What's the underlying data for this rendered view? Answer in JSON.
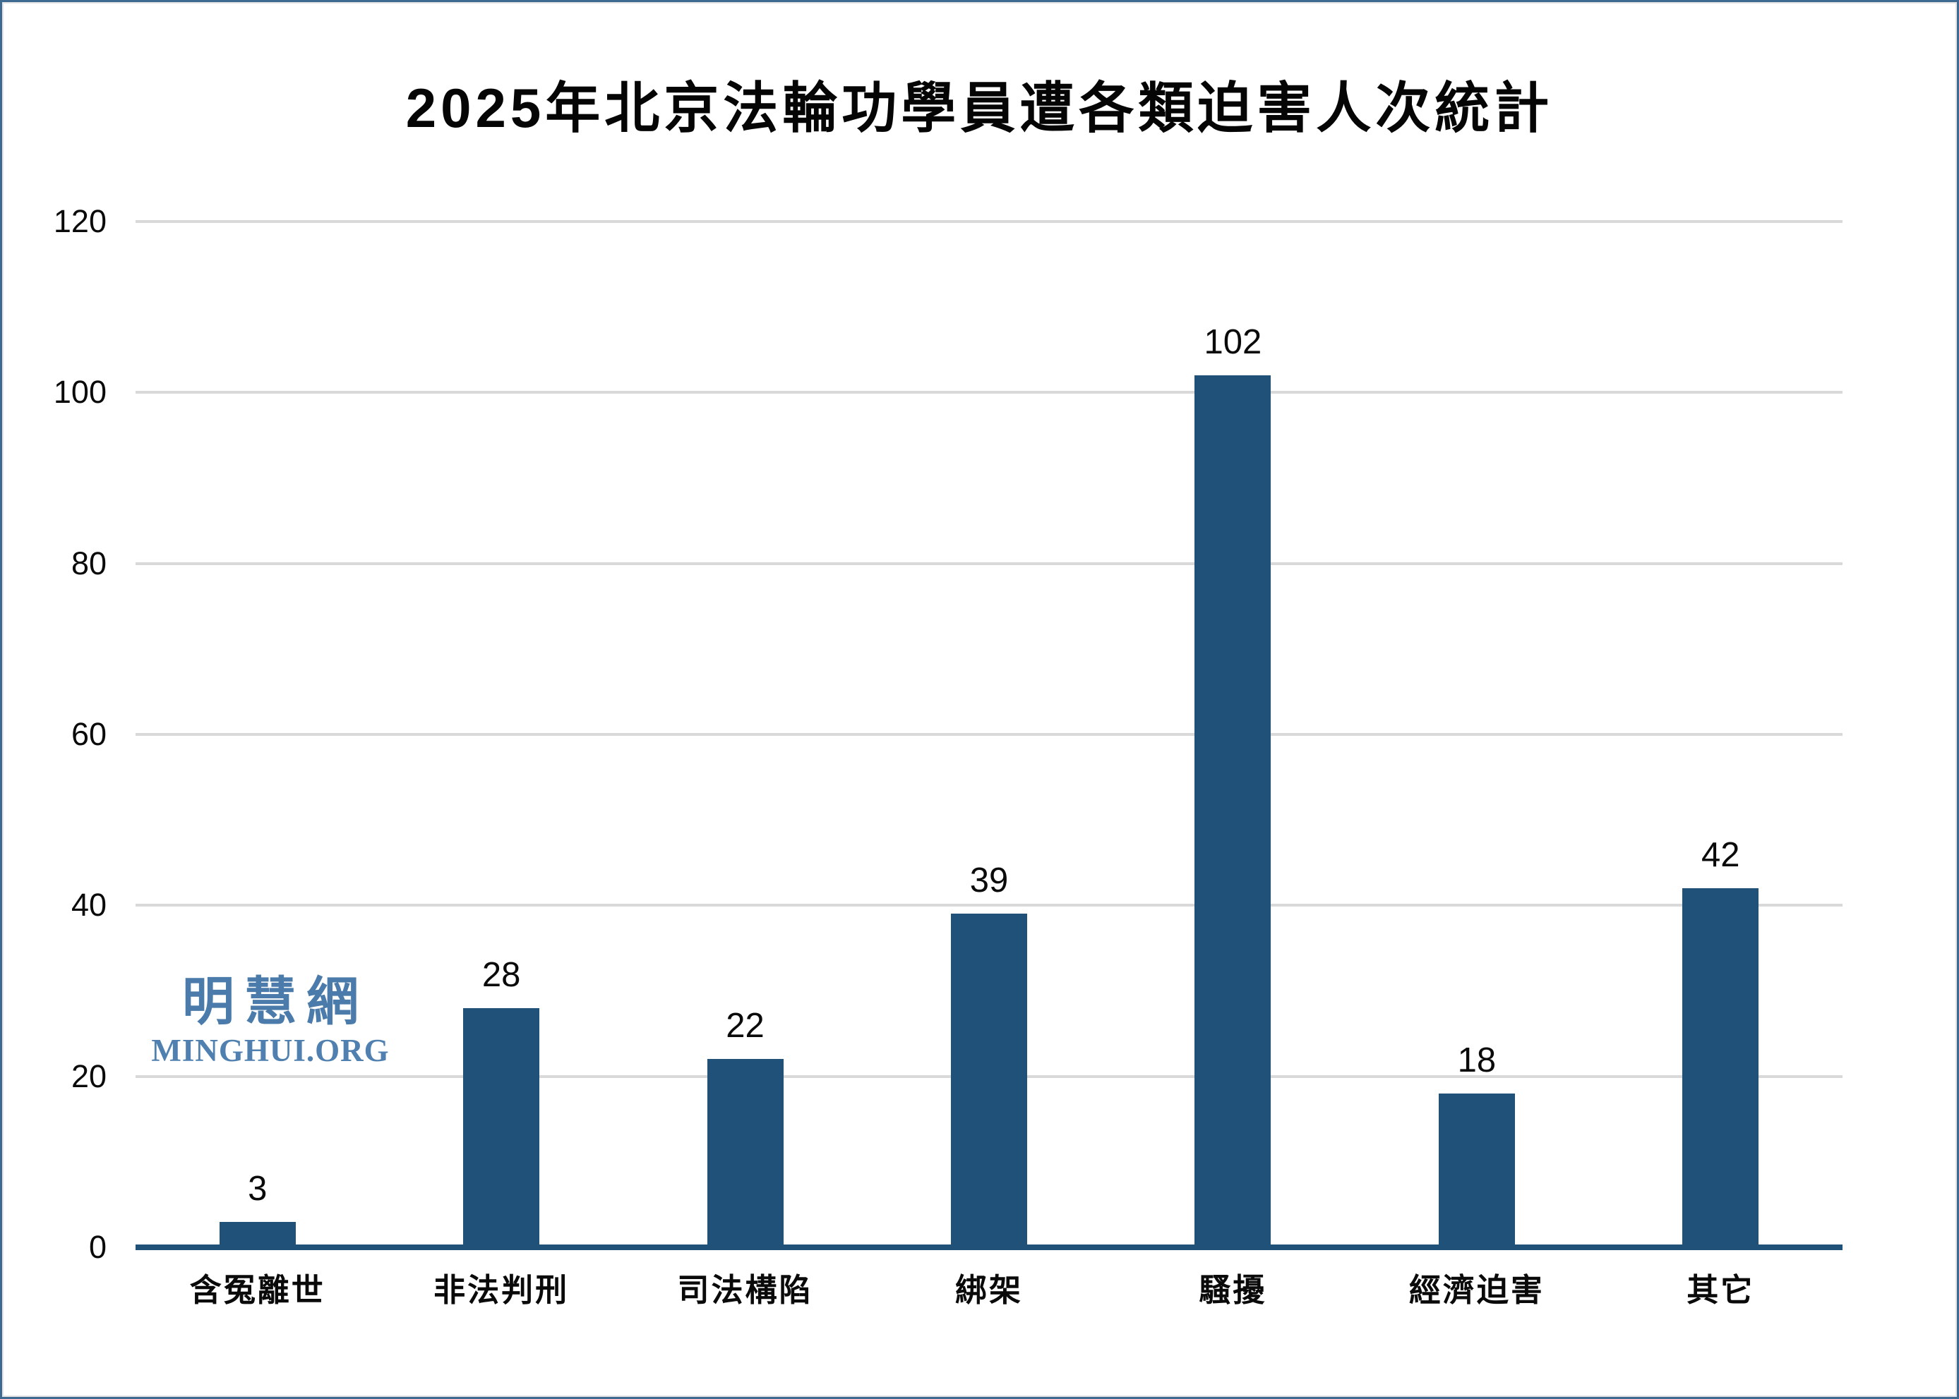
{
  "page": {
    "border_color": "#3E6991",
    "background_color": "#FFFFFF"
  },
  "chart_data": {
    "type": "bar",
    "title": "2025年北京法輪功學員遭各類迫害人次統計",
    "categories": [
      "含冤離世",
      "非法判刑",
      "司法構陷",
      "綁架",
      "騷擾",
      "經濟迫害",
      "其它"
    ],
    "values": [
      3,
      28,
      22,
      39,
      102,
      18,
      42
    ],
    "xlabel": "",
    "ylabel": "",
    "ylim": [
      0,
      120
    ],
    "yticks": [
      0,
      20,
      40,
      60,
      80,
      100,
      120
    ],
    "grid": "horizontal",
    "legend": "none",
    "bar_color": "#205178",
    "axis_color": "#205178",
    "gridline_color": "#D9D9D9",
    "value_labels": [
      "3",
      "28",
      "22",
      "39",
      "102",
      "18",
      "42"
    ],
    "value_label_color": "#0A0A0A"
  },
  "watermark": {
    "cjk": "明慧網",
    "latin": "MINGHUI.ORG",
    "color": "#4A7BAA"
  }
}
